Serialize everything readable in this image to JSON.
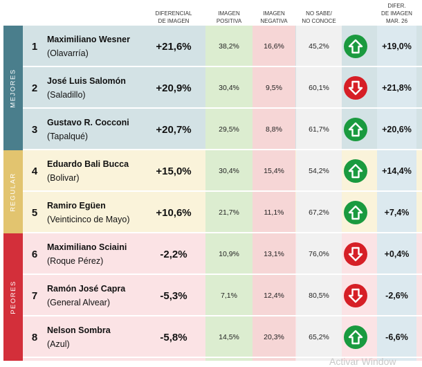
{
  "headers": {
    "diferencial": [
      "DIFERENCIAL",
      "DE IMAGEN"
    ],
    "positiva": [
      "IMAGEN",
      "POSITIVA"
    ],
    "negativa": [
      "IMAGEN",
      "NEGATIVA"
    ],
    "nosabe": [
      "NO SABE/",
      "NO CONOCE"
    ],
    "previo": [
      "DIFER.",
      "DE IMAGEN",
      "MAR. 26"
    ]
  },
  "groups": [
    {
      "label": "MEJORES",
      "color": "#4a7e8c"
    },
    {
      "label": "REGULAR",
      "color": "#e2c46f"
    },
    {
      "label": "PEORES",
      "color": "#d32f3a"
    }
  ],
  "colors": {
    "mejores_bg": "#d3e2e5",
    "regular_bg": "#faf3da",
    "peores_bg": "#fbe3e5",
    "positiva_col": "#dcedd0",
    "negativa_col": "#f6d6d6",
    "nosabe_col": "#f1f1f1",
    "previo_col": "#dce9ef",
    "arrow_up": "#1a9a3f",
    "arrow_down": "#d61f26"
  },
  "rows": [
    {
      "rank": "1",
      "name": "Maximiliano Wesner",
      "city": "(Olavarría)",
      "diferencial": "+21,6%",
      "positiva": "38,2%",
      "negativa": "16,6%",
      "nosabe": "45,2%",
      "trend": "up",
      "previo": "+19,0%"
    },
    {
      "rank": "2",
      "name": "José Luis Salomón",
      "city": "(Saladillo)",
      "diferencial": "+20,9%",
      "positiva": "30,4%",
      "negativa": "9,5%",
      "nosabe": "60,1%",
      "trend": "down",
      "previo": "+21,8%"
    },
    {
      "rank": "3",
      "name": "Gustavo R. Cocconi",
      "city": "(Tapalqué)",
      "diferencial": "+20,7%",
      "positiva": "29,5%",
      "negativa": "8,8%",
      "nosabe": "61,7%",
      "trend": "up",
      "previo": "+20,6%"
    },
    {
      "rank": "4",
      "name": "Eduardo Bali Bucca",
      "city": "(Bolivar)",
      "diferencial": "+15,0%",
      "positiva": "30,4%",
      "negativa": "15,4%",
      "nosabe": "54,2%",
      "trend": "up",
      "previo": "+14,4%"
    },
    {
      "rank": "5",
      "name": "Ramiro Egüen",
      "city": "(Veinticinco de Mayo)",
      "diferencial": "+10,6%",
      "positiva": "21,7%",
      "negativa": "11,1%",
      "nosabe": "67,2%",
      "trend": "up",
      "previo": "+7,4%"
    },
    {
      "rank": "6",
      "name": "Maximiliano Sciaini",
      "city": "(Roque Pérez)",
      "diferencial": "-2,2%",
      "positiva": "10,9%",
      "negativa": "13,1%",
      "nosabe": "76,0%",
      "trend": "down",
      "previo": "+0,4%"
    },
    {
      "rank": "7",
      "name": "Ramón José Capra",
      "city": "(General Alvear)",
      "diferencial": "-5,3%",
      "positiva": "7,1%",
      "negativa": "12,4%",
      "nosabe": "80,5%",
      "trend": "down",
      "previo": "-2,6%"
    },
    {
      "rank": "8",
      "name": "Nelson Sombra",
      "city": "(Azul)",
      "diferencial": "-5,8%",
      "positiva": "14,5%",
      "negativa": "20,3%",
      "nosabe": "65,2%",
      "trend": "up",
      "previo": "-6,6%"
    }
  ],
  "watermark": "Activar Window"
}
